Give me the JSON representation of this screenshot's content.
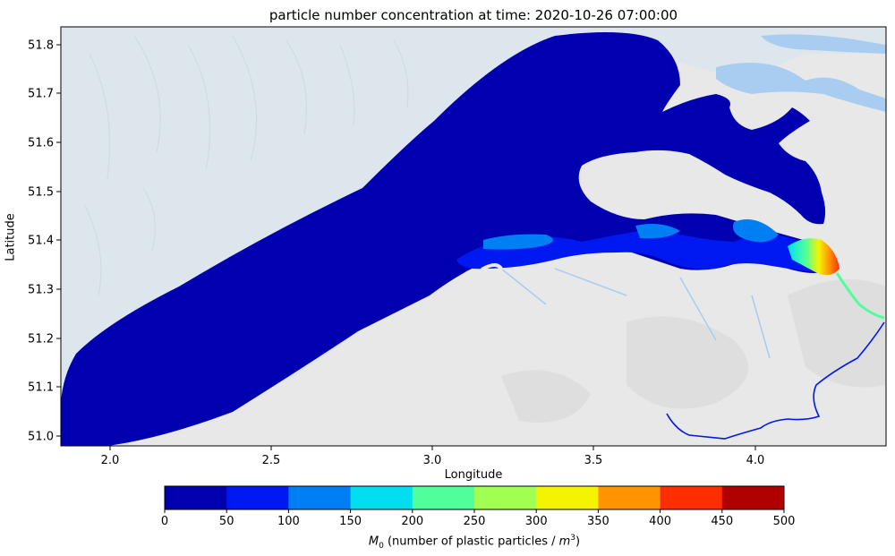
{
  "title": "particle number concentration at time: 2020-10-26 07:00:00",
  "xlabel": "Longitude",
  "ylabel": "Latitude",
  "x_ticks": [
    "2.0",
    "2.5",
    "3.0",
    "3.5",
    "4.0"
  ],
  "y_ticks": [
    "51.8",
    "51.7",
    "51.6",
    "51.5",
    "51.4",
    "51.3",
    "51.2",
    "51.1",
    "51.0"
  ],
  "colorbar": {
    "ticks": [
      "0",
      "50",
      "100",
      "150",
      "200",
      "250",
      "300",
      "350",
      "400",
      "450",
      "500"
    ],
    "colors": [
      "#0000b0",
      "#0018f0",
      "#007ff5",
      "#00def0",
      "#50ff9c",
      "#a0ff50",
      "#f4f400",
      "#ff9400",
      "#ff2e00",
      "#b00000"
    ],
    "label_symbol": "M",
    "label_sub": "0",
    "label_text": " (number of plastic particles / ",
    "label_unit": "m",
    "label_sup": "3",
    "label_close": ")"
  },
  "map": {
    "water_color": "#0000b0",
    "land_color": "#e6e7e6",
    "sea_color": "#dde6ec",
    "river_color": "#a8cdf0"
  }
}
